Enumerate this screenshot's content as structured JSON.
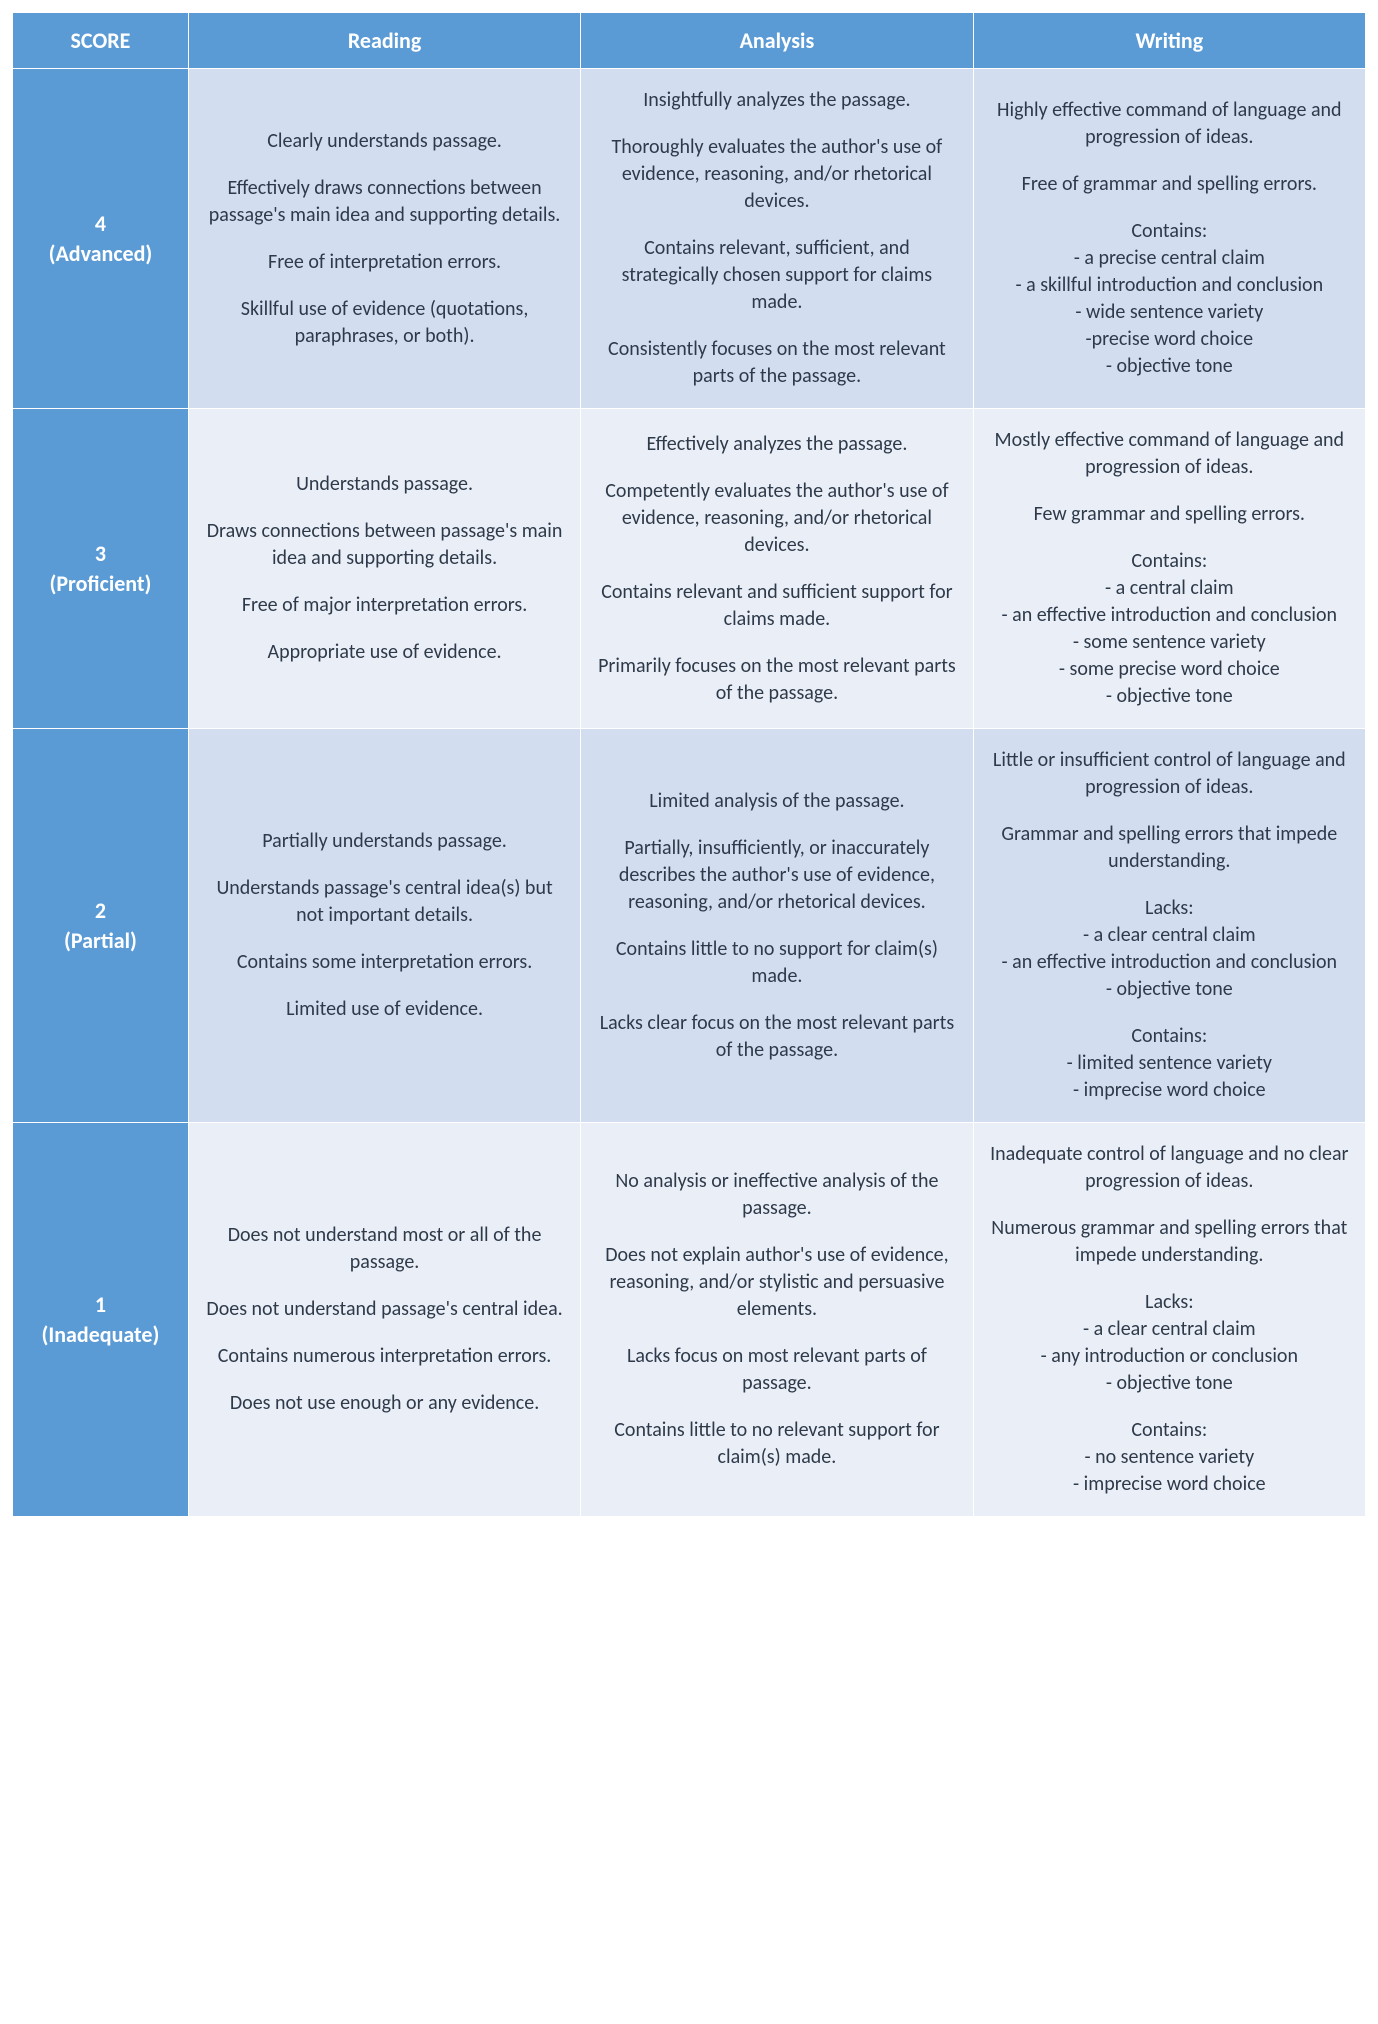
{
  "colors": {
    "header_bg": "#5b9bd5",
    "header_fg": "#ffffff",
    "band_a": "#d2deef",
    "band_b": "#eaeff7",
    "text": "#2e3a4a",
    "border": "#ffffff"
  },
  "typography": {
    "header_fontsize_pt": 16,
    "cell_fontsize_pt": 15,
    "font_family": "Calibri"
  },
  "header": {
    "score": "SCORE",
    "reading": "Reading",
    "analysis": "Analysis",
    "writing": "Writing"
  },
  "rows": [
    {
      "score_num": "4",
      "score_label": "(Advanced)",
      "reading": [
        "Clearly understands passage.",
        "Effectively draws connections between passage's main idea and supporting details.",
        "Free of interpretation errors.",
        "Skillful use of evidence (quotations, paraphrases, or both)."
      ],
      "analysis": [
        "Insightfully analyzes the passage.",
        "Thoroughly evaluates the author's use of evidence, reasoning, and/or rhetorical devices.",
        "Contains relevant, sufficient, and strategically chosen support for claims made.",
        "Consistently focuses on the most relevant parts of the passage."
      ],
      "writing": [
        "Highly effective command of language and progression of ideas.",
        "Free of grammar and spelling errors.",
        "Contains:",
        "- a precise central claim\n- a skillful introduction and conclusion\n- wide sentence variety\n-precise word choice\n- objective tone"
      ]
    },
    {
      "score_num": "3",
      "score_label": "(Proficient)",
      "reading": [
        "Understands passage.",
        "Draws connections between passage's main idea and supporting details.",
        "Free of major interpretation errors.",
        "Appropriate use of evidence."
      ],
      "analysis": [
        "Effectively analyzes the passage.",
        "Competently evaluates the author's use of evidence, reasoning, and/or rhetorical devices.",
        "Contains relevant and sufficient support for claims made.",
        "Primarily focuses on the most relevant parts of the passage."
      ],
      "writing": [
        "Mostly effective command of language and progression of ideas.",
        "Few grammar and spelling errors.",
        "Contains:",
        "- a central claim\n- an effective introduction and conclusion\n- some sentence variety\n- some precise word choice\n- objective tone"
      ]
    },
    {
      "score_num": "2",
      "score_label": "(Partial)",
      "reading": [
        "Partially understands passage.",
        "Understands passage's central idea(s) but not important details.",
        "Contains some interpretation errors.",
        "Limited use of evidence."
      ],
      "analysis": [
        "Limited analysis of the passage.",
        "Partially, insufficiently, or inaccurately describes the author's use of evidence, reasoning, and/or rhetorical devices.",
        "Contains little to no support for claim(s) made.",
        "Lacks clear focus on the most relevant parts of the passage."
      ],
      "writing": [
        "Little or insufficient control of language and progression of ideas.",
        "Grammar and spelling errors that impede understanding.",
        "Lacks:",
        "- a clear central claim\n- an effective introduction and conclusion\n- objective tone",
        "Contains:",
        "- limited sentence variety\n- imprecise word choice"
      ]
    },
    {
      "score_num": "1",
      "score_label": "(Inadequate)",
      "reading": [
        "Does not understand most or all of the passage.",
        "Does not understand passage's central idea.",
        "Contains numerous interpretation errors.",
        "Does not use enough or any evidence."
      ],
      "analysis": [
        "No analysis or ineffective analysis of the passage.",
        "Does not explain author's use of evidence, reasoning, and/or stylistic and persuasive elements.",
        "Lacks focus on most relevant parts of passage.",
        "Contains little to no relevant support for claim(s) made."
      ],
      "writing": [
        "Inadequate control of language and no clear progression of ideas.",
        "Numerous grammar and spelling errors that impede understanding.",
        "Lacks:",
        "- a clear central claim\n- any introduction or conclusion\n- objective tone",
        "Contains:",
        "- no sentence variety\n- imprecise word choice"
      ]
    }
  ]
}
